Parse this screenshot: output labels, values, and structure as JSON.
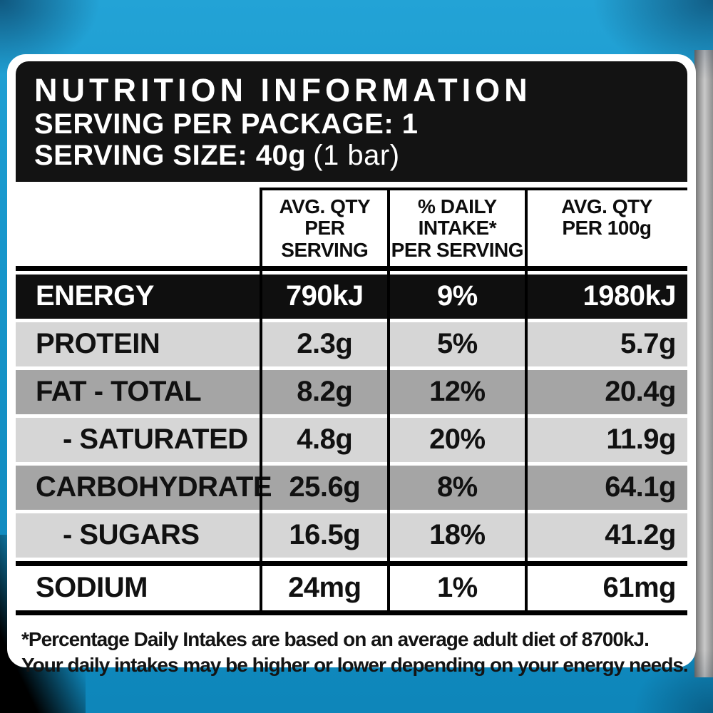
{
  "header": {
    "title": "NUTRITION INFORMATION",
    "serving_per_package": "SERVING PER PACKAGE: 1",
    "serving_size": "SERVING SIZE: 40g",
    "serving_size_note": "(1 bar)"
  },
  "table": {
    "col_headers": [
      {
        "line1": "AVG. QTY",
        "line2": "PER SERVING"
      },
      {
        "line1": "% DAILY INTAKE*",
        "line2": "PER SERVING"
      },
      {
        "line1": "AVG. QTY",
        "line2": "PER 100g"
      }
    ],
    "rows": [
      {
        "label": "ENERGY",
        "per_serving": "790kJ",
        "daily_intake": "9%",
        "per_100g": "1980kJ"
      },
      {
        "label": "PROTEIN",
        "per_serving": "2.3g",
        "daily_intake": "5%",
        "per_100g": "5.7g"
      },
      {
        "label": "FAT - TOTAL",
        "per_serving": "8.2g",
        "daily_intake": "12%",
        "per_100g": "20.4g"
      },
      {
        "label": "- SATURATED",
        "per_serving": "4.8g",
        "daily_intake": "20%",
        "per_100g": "11.9g"
      },
      {
        "label": "CARBOHYDRATE",
        "per_serving": "25.6g",
        "daily_intake": "8%",
        "per_100g": "64.1g"
      },
      {
        "label": "- SUGARS",
        "per_serving": "16.5g",
        "daily_intake": "18%",
        "per_100g": "41.2g"
      },
      {
        "label": "SODIUM",
        "per_serving": "24mg",
        "daily_intake": "1%",
        "per_100g": "61mg"
      }
    ]
  },
  "footnote": {
    "line1": "*Percentage Daily Intakes are based on an average adult diet of 8700kJ.",
    "line2": "Your daily intakes may be higher or lower depending on your energy needs."
  },
  "colors": {
    "package_blue": "#1796cb",
    "header_black": "#131313",
    "row_light": "#d6d6d6",
    "row_medium": "#a5a5a5"
  }
}
